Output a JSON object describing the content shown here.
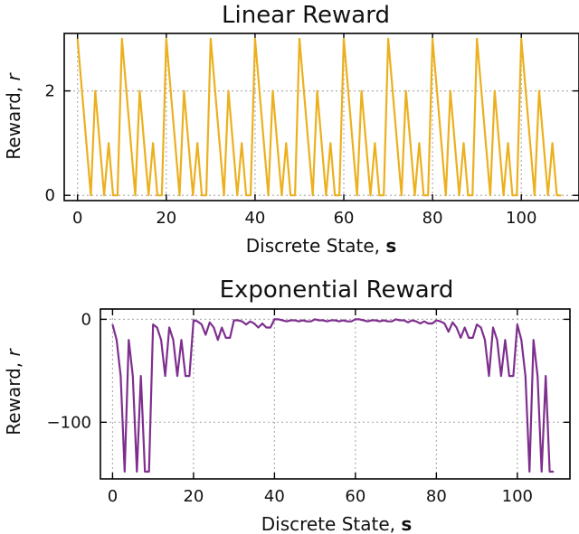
{
  "chart_data": [
    {
      "type": "line",
      "title": "Linear Reward",
      "xlabel_text": "Discrete State, ",
      "xlabel_bold": "s",
      "ylabel_text": "Reward, ",
      "ylabel_italic": "r",
      "xlim": [
        -3,
        113
      ],
      "ylim": [
        -0.1,
        3.1
      ],
      "xticks": [
        0,
        20,
        40,
        60,
        80,
        100
      ],
      "xtick_labels": [
        "0",
        "20",
        "40",
        "60",
        "80",
        "100"
      ],
      "yticks": [
        0,
        2
      ],
      "ytick_labels": [
        "0",
        "2"
      ],
      "grid": true,
      "color": "#ecb01f",
      "x": [
        0,
        1,
        2,
        3,
        4,
        5,
        6,
        7,
        8,
        9,
        10,
        11,
        12,
        13,
        14,
        15,
        16,
        17,
        18,
        19,
        20,
        21,
        22,
        23,
        24,
        25,
        26,
        27,
        28,
        29,
        30,
        31,
        32,
        33,
        34,
        35,
        36,
        37,
        38,
        39,
        40,
        41,
        42,
        43,
        44,
        45,
        46,
        47,
        48,
        49,
        50,
        51,
        52,
        53,
        54,
        55,
        56,
        57,
        58,
        59,
        60,
        61,
        62,
        63,
        64,
        65,
        66,
        67,
        68,
        69,
        70,
        71,
        72,
        73,
        74,
        75,
        76,
        77,
        78,
        79,
        80,
        81,
        82,
        83,
        84,
        85,
        86,
        87,
        88,
        89,
        90,
        91,
        92,
        93,
        94,
        95,
        96,
        97,
        98,
        99,
        100,
        101,
        102,
        103,
        104,
        105,
        106,
        107,
        108,
        109
      ],
      "y": [
        3,
        2,
        1,
        0,
        2,
        1,
        0,
        1,
        0,
        0,
        3,
        2,
        1,
        0,
        2,
        1,
        0,
        1,
        0,
        0,
        3,
        2,
        1,
        0,
        2,
        1,
        0,
        1,
        0,
        0,
        3,
        2,
        1,
        0,
        2,
        1,
        0,
        1,
        0,
        0,
        3,
        2,
        1,
        0,
        2,
        1,
        0,
        1,
        0,
        0,
        3,
        2,
        1,
        0,
        2,
        1,
        0,
        1,
        0,
        0,
        3,
        2,
        1,
        0,
        2,
        1,
        0,
        1,
        0,
        0,
        3,
        2,
        1,
        0,
        2,
        1,
        0,
        1,
        0,
        0,
        3,
        2,
        1,
        0,
        2,
        1,
        0,
        1,
        0,
        0,
        3,
        2,
        1,
        0,
        2,
        1,
        0,
        1,
        0,
        0,
        3,
        2,
        1,
        0,
        2,
        1,
        0,
        1,
        0,
        0
      ]
    },
    {
      "type": "line",
      "title": "Exponential Reward",
      "xlabel_text": "Discrete State, ",
      "xlabel_bold": "s",
      "ylabel_text": "Reward, ",
      "ylabel_italic": "r",
      "xlim": [
        -3,
        113
      ],
      "ylim": [
        -155,
        10
      ],
      "xticks": [
        0,
        20,
        40,
        60,
        80,
        100
      ],
      "xtick_labels": [
        "0",
        "20",
        "40",
        "60",
        "80",
        "100"
      ],
      "yticks": [
        0,
        -100
      ],
      "ytick_labels": [
        "0",
        "−100"
      ],
      "grid": true,
      "color": "#7e2f8e",
      "x": [
        0,
        1,
        2,
        3,
        4,
        5,
        6,
        7,
        8,
        9,
        10,
        11,
        12,
        13,
        14,
        15,
        16,
        17,
        18,
        19,
        20,
        21,
        22,
        23,
        24,
        25,
        26,
        27,
        28,
        29,
        30,
        31,
        32,
        33,
        34,
        35,
        36,
        37,
        38,
        39,
        40,
        41,
        42,
        43,
        44,
        45,
        46,
        47,
        48,
        49,
        50,
        51,
        52,
        53,
        54,
        55,
        56,
        57,
        58,
        59,
        60,
        61,
        62,
        63,
        64,
        65,
        66,
        67,
        68,
        69,
        70,
        71,
        72,
        73,
        74,
        75,
        76,
        77,
        78,
        79,
        80,
        81,
        82,
        83,
        84,
        85,
        86,
        87,
        88,
        89,
        90,
        91,
        92,
        93,
        94,
        95,
        96,
        97,
        98,
        99,
        100,
        101,
        102,
        103,
        104,
        105,
        106,
        107,
        108,
        109
      ],
      "y": [
        -5,
        -20,
        -55,
        -148,
        -20,
        -55,
        -148,
        -55,
        -148,
        -148,
        -5,
        -8,
        -20,
        -55,
        -8,
        -20,
        -55,
        -20,
        -55,
        -55,
        -1,
        -2,
        -5,
        -15,
        -3,
        -8,
        -20,
        -8,
        -18,
        -18,
        -1,
        -1,
        -2,
        -5,
        -2,
        -4,
        -8,
        -4,
        -8,
        -8,
        0,
        0,
        -1,
        -2,
        -1,
        -1,
        -2,
        -1,
        -2,
        -2,
        0,
        -1,
        -1,
        -2,
        -1,
        -1,
        -2,
        -1,
        -2,
        -2,
        0,
        0,
        -1,
        -2,
        -1,
        -1,
        -2,
        -1,
        -2,
        -2,
        0,
        -1,
        -1,
        -3,
        -1,
        -2,
        -4,
        -2,
        -4,
        -4,
        -1,
        -2,
        -4,
        -12,
        -3,
        -8,
        -18,
        -8,
        -18,
        -18,
        -5,
        -8,
        -20,
        -55,
        -8,
        -20,
        -55,
        -20,
        -55,
        -55,
        -5,
        -20,
        -55,
        -148,
        -20,
        -55,
        -148,
        -55,
        -148,
        -148
      ]
    }
  ]
}
